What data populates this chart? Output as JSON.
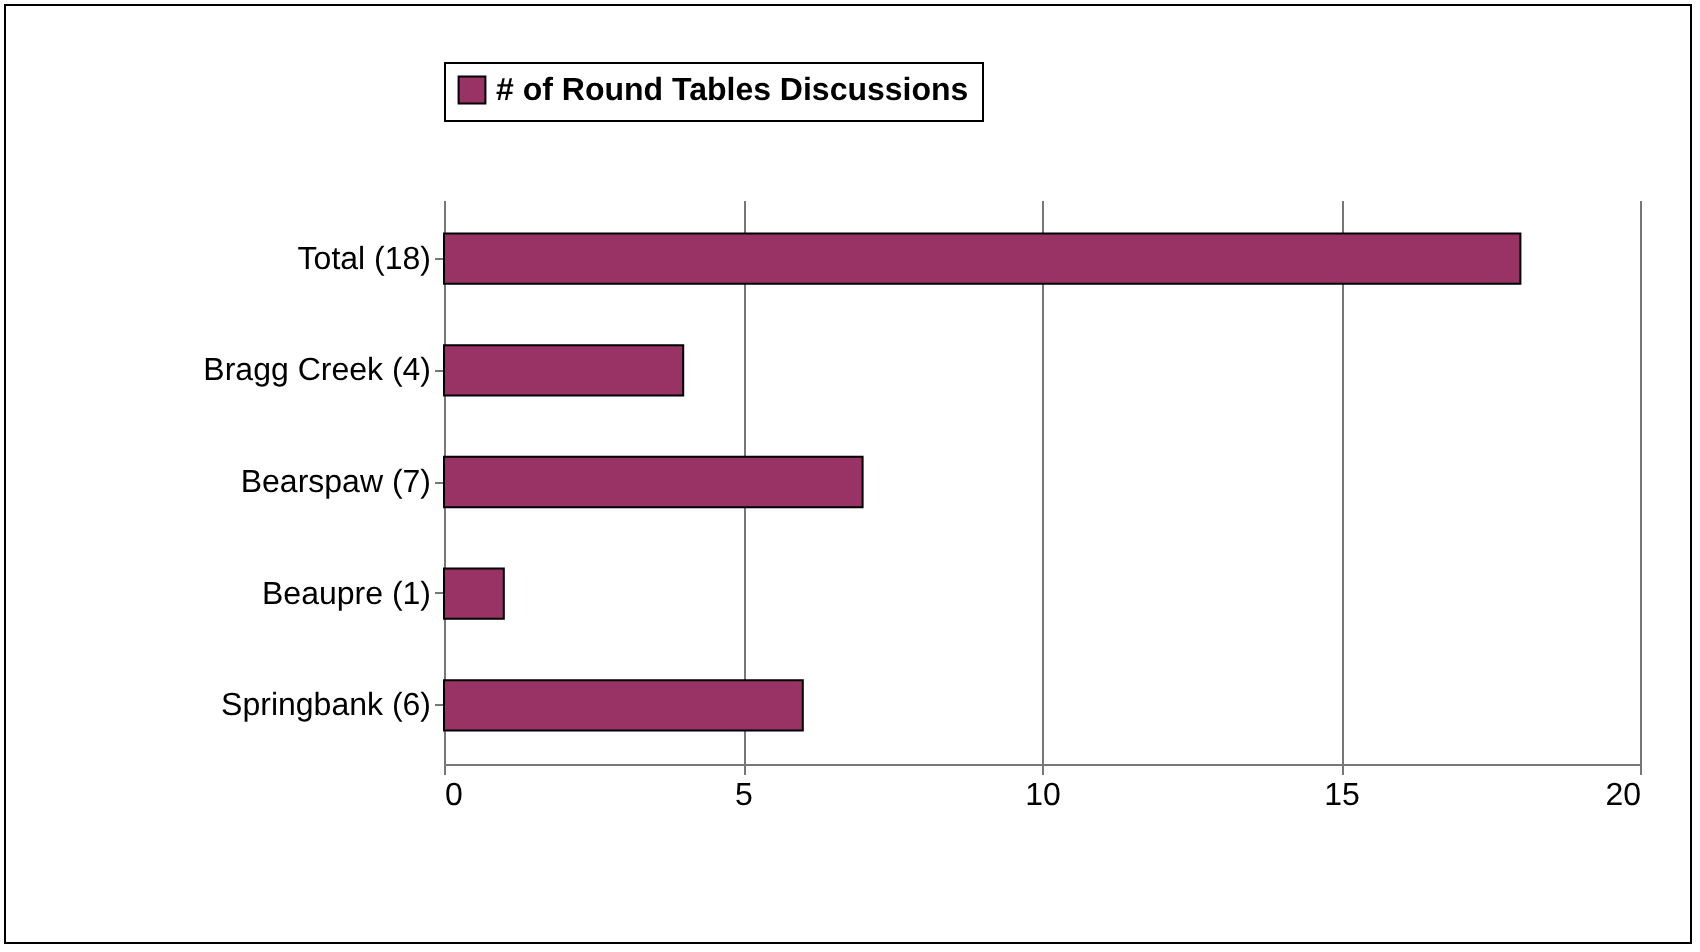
{
  "chart_data": {
    "type": "bar",
    "orientation": "horizontal",
    "categories": [
      "Total (18)",
      "Bragg Creek  (4)",
      "Bearspaw  (7)",
      "Beaupre  (1)",
      "Springbank  (6)"
    ],
    "series": [
      {
        "name": "# of Round Tables Discussions",
        "color": "#993366",
        "values": [
          18,
          4,
          7,
          1,
          6
        ]
      }
    ],
    "xlim": [
      0,
      20
    ],
    "xticks": [
      0,
      5,
      10,
      15,
      20
    ],
    "grid": "x",
    "legend": "top"
  }
}
